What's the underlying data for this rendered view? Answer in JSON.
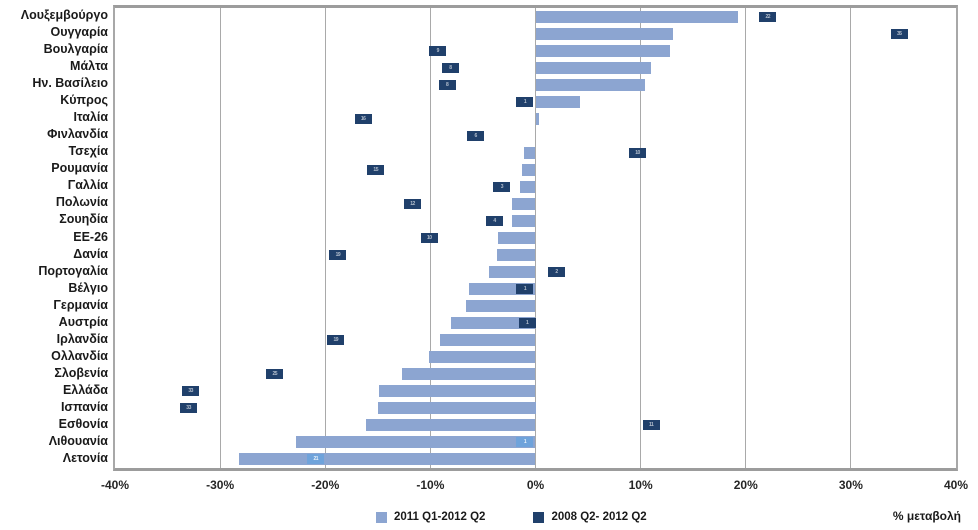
{
  "chart_data": {
    "type": "bar",
    "orientation": "horizontal",
    "xlabel": "% μεταβολή",
    "xlim": [
      -40,
      40
    ],
    "x_ticks": [
      -40,
      -30,
      -20,
      -10,
      0,
      10,
      20,
      30,
      40
    ],
    "x_tick_labels": [
      "-40%",
      "-30%",
      "-20%",
      "-10%",
      "0%",
      "10%",
      "20%",
      "30%",
      "40%"
    ],
    "grid": true,
    "legend_position": "bottom",
    "legend": [
      {
        "name": "2011 Q1-2012 Q2",
        "color": "#8CA5D1"
      },
      {
        "name": "2008 Q2- 2012 Q2",
        "color": "#20406B"
      }
    ],
    "categories": [
      "Λουξεμβούργο",
      "Ουγγαρία",
      "Βουλγαρία",
      "Μάλτα",
      "Ην. Βασίλειο",
      "Κύπρος",
      "Ιταλία",
      "Φινλανδία",
      "Τσεχία",
      "Ρουμανία",
      "Γαλλία",
      "Πολωνία",
      "Σουηδία",
      "ΕΕ-26",
      "Δανία",
      "Πορτογαλία",
      "Βέλγιο",
      "Γερμανία",
      "Αυστρία",
      "Ιρλανδία",
      "Ολλανδία",
      "Σλοβενία",
      "Ελλάδα",
      "Ισπανία",
      "Εσθονία",
      "Λιθουανία",
      "Λετονία"
    ],
    "series": [
      {
        "name": "2011 Q1-2012 Q2",
        "render": "bar",
        "values": [
          19.3,
          13.1,
          12.8,
          11.0,
          10.4,
          4.2,
          0.3,
          0.0,
          -1.1,
          -1.3,
          -1.5,
          -2.2,
          -2.2,
          -3.6,
          -3.7,
          -4.4,
          -6.3,
          -6.6,
          -8.0,
          -9.1,
          -10.1,
          -12.7,
          -14.9,
          -15.0,
          -16.1,
          -22.8,
          -28.2
        ]
      },
      {
        "name": "2008 Q2- 2012 Q2",
        "render": "label-marker",
        "points": [
          {
            "value": 22.1,
            "style": "dark"
          },
          {
            "value": 34.6,
            "style": "dark"
          },
          {
            "value": -9.3,
            "style": "dark"
          },
          {
            "value": -8.1,
            "style": "dark"
          },
          {
            "value": -8.4,
            "style": "dark"
          },
          {
            "value": -1.0,
            "style": "dark"
          },
          {
            "value": -16.4,
            "style": "dark"
          },
          {
            "value": -5.7,
            "style": "dark"
          },
          {
            "value": 9.7,
            "style": "dark"
          },
          {
            "value": -15.2,
            "style": "dark"
          },
          {
            "value": -3.2,
            "style": "dark"
          },
          {
            "value": -11.7,
            "style": "dark"
          },
          {
            "value": -3.9,
            "style": "dark"
          },
          {
            "value": -10.1,
            "style": "dark"
          },
          {
            "value": -18.8,
            "style": "dark"
          },
          {
            "value": 2.0,
            "style": "dark"
          },
          {
            "value": -1.0,
            "style": "dark"
          },
          null,
          {
            "value": -0.8,
            "style": "dark"
          },
          {
            "value": -19.0,
            "style": "dark"
          },
          null,
          {
            "value": -24.8,
            "style": "dark"
          },
          {
            "value": -32.8,
            "style": "dark"
          },
          {
            "value": -33.0,
            "style": "dark"
          },
          {
            "value": 11.0,
            "style": "dark"
          },
          {
            "value": -1.0,
            "style": "light"
          },
          {
            "value": -20.9,
            "style": "light"
          }
        ]
      }
    ],
    "colors": {
      "bar": "#8CA5D1",
      "marker_dark": "#20406B",
      "marker_light": "#6FA3DB",
      "gridline": "#a9a9a9",
      "text": "#1a1a1a"
    }
  }
}
